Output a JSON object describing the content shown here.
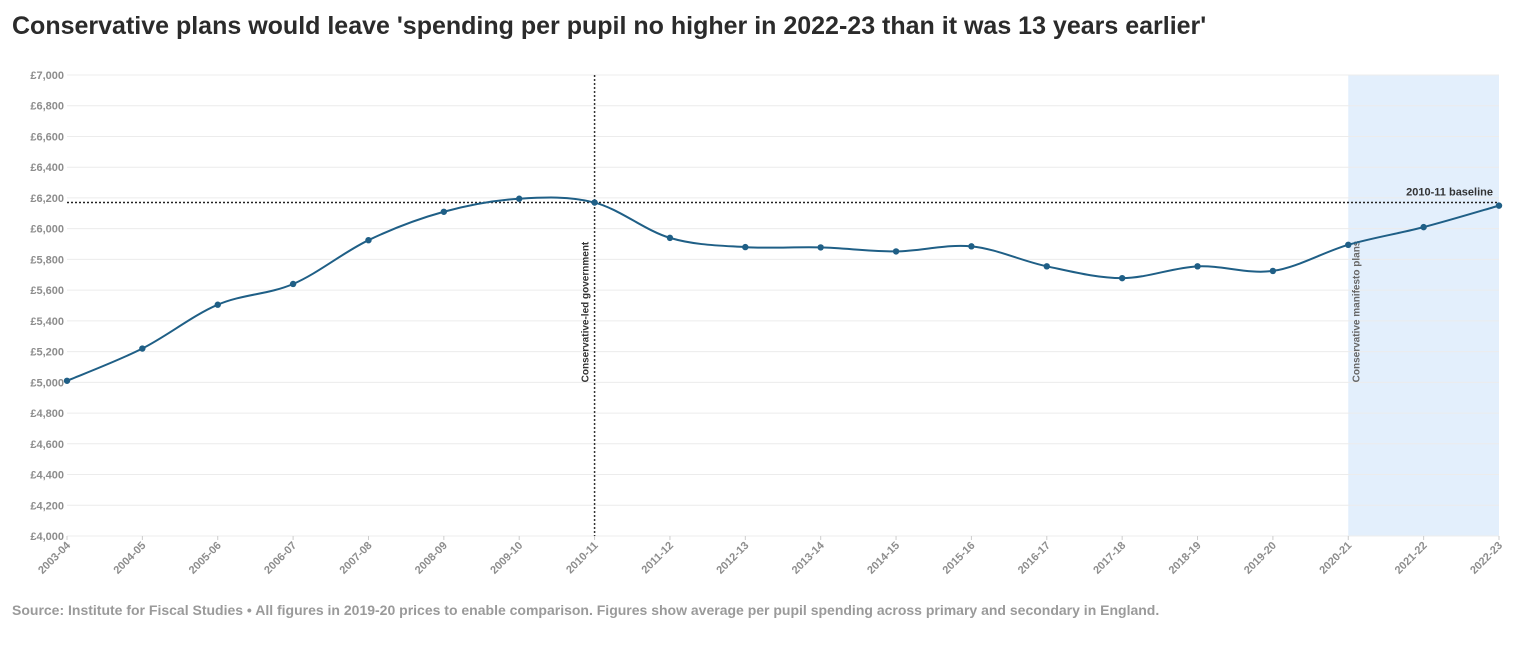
{
  "title": "Conservative plans would leave 'spending per pupil no higher in 2022-23 than it was 13 years earlier'",
  "source": "Source: Institute for Fiscal Studies • All figures in 2019-20 prices to enable comparison. Figures show average per pupil spending across primary and secondary in England.",
  "colors": {
    "line": "#1f5f86",
    "band": "#e3effc",
    "grid": "#ececec"
  },
  "chart_data": {
    "type": "line",
    "categories": [
      "2003-04",
      "2004-05",
      "2005-06",
      "2006-07",
      "2007-08",
      "2008-09",
      "2009-10",
      "2010-11",
      "2011-12",
      "2012-13",
      "2013-14",
      "2014-15",
      "2015-16",
      "2016-17",
      "2017-18",
      "2018-19",
      "2019-20",
      "2020-21",
      "2021-22",
      "2022-23"
    ],
    "series": [
      {
        "values": [
          5010,
          5220,
          5505,
          5640,
          5925,
          6110,
          6195,
          6170,
          5940,
          5880,
          5878,
          5852,
          5885,
          5755,
          5678,
          5755,
          5725,
          5895,
          6010,
          6150
        ]
      }
    ],
    "ylim": [
      4000,
      7000
    ],
    "yticks": [
      4000,
      4200,
      4400,
      4600,
      4800,
      5000,
      5200,
      5400,
      5600,
      5800,
      6000,
      6200,
      6400,
      6600,
      6800,
      7000
    ],
    "ytick_labels": [
      "£4,000",
      "£4,200",
      "£4,400",
      "£4,600",
      "£4,800",
      "£5,000",
      "£5,200",
      "£5,400",
      "£5,600",
      "£5,800",
      "£6,000",
      "£6,200",
      "£6,400",
      "£6,600",
      "£6,800",
      "£7,000"
    ],
    "xlabel": "",
    "ylabel": "",
    "grid": true,
    "annotations": {
      "vline": {
        "x": "2010-11",
        "label": "Conservative-led government"
      },
      "band": {
        "from": "2020-21",
        "to": "2022-23",
        "label": "Conservative manifesto plans"
      },
      "hline": {
        "y": 6170,
        "label": "2010-11 baseline"
      }
    }
  }
}
